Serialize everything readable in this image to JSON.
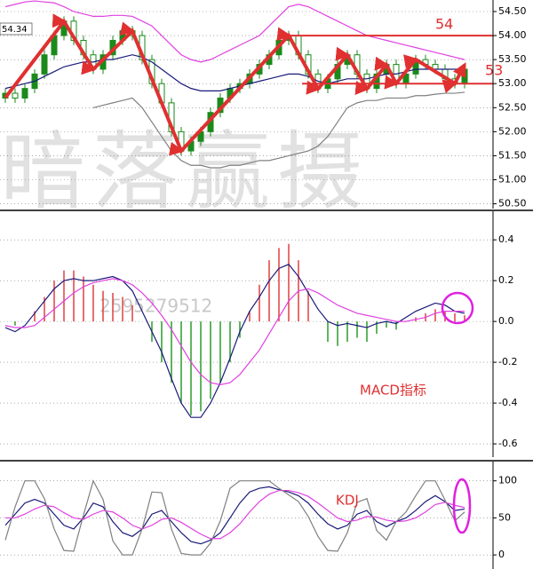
{
  "chart_data": [
    {
      "type": "candlestick",
      "ylim": [
        50.4,
        54.74
      ],
      "yticks": [
        {
          "value": 54.5,
          "label": "54.50"
        },
        {
          "value": 54,
          "label": "54.00"
        },
        {
          "value": 53.5,
          "label": "53.50"
        },
        {
          "value": 53,
          "label": "53.00"
        },
        {
          "value": 52.5,
          "label": "52.50"
        },
        {
          "value": 52,
          "label": "52.00"
        },
        {
          "value": 51.5,
          "label": "51.50"
        },
        {
          "value": 51,
          "label": "51.00"
        },
        {
          "value": 50.5,
          "label": "50.50"
        }
      ],
      "grid": true,
      "up_color": "#1a8a1a",
      "down_color": "#ffffff",
      "watermark": "暗落赢摄",
      "high_label": "54.34",
      "annotations": [
        {
          "text": "54",
          "value": 54,
          "color": "#e03030"
        },
        {
          "text": "53",
          "value": 53,
          "color": "#e03030"
        }
      ],
      "candles": [
        [
          52.7,
          52.9,
          52.6,
          52.8
        ],
        [
          52.8,
          52.9,
          52.6,
          52.7
        ],
        [
          52.7,
          53.0,
          52.6,
          52.9
        ],
        [
          52.9,
          53.3,
          52.8,
          53.2
        ],
        [
          53.2,
          53.7,
          53.1,
          53.6
        ],
        [
          53.6,
          54.1,
          53.5,
          54.0
        ],
        [
          54.0,
          54.4,
          53.9,
          54.3
        ],
        [
          54.3,
          54.4,
          53.8,
          53.9
        ],
        [
          53.9,
          54.0,
          53.5,
          53.6
        ],
        [
          53.6,
          53.7,
          53.2,
          53.3
        ],
        [
          53.3,
          53.7,
          53.2,
          53.6
        ],
        [
          53.6,
          54.0,
          53.5,
          53.9
        ],
        [
          53.9,
          54.2,
          53.8,
          54.1
        ],
        [
          54.1,
          54.2,
          53.9,
          54.0
        ],
        [
          54.0,
          54.1,
          53.4,
          53.5
        ],
        [
          53.5,
          53.6,
          52.9,
          53.0
        ],
        [
          53.0,
          53.1,
          52.5,
          52.6
        ],
        [
          52.6,
          52.7,
          51.9,
          52.0
        ],
        [
          52.0,
          52.1,
          51.5,
          51.6
        ],
        [
          51.6,
          51.9,
          51.5,
          51.8
        ],
        [
          51.8,
          52.1,
          51.7,
          52.0
        ],
        [
          52.0,
          52.5,
          51.9,
          52.4
        ],
        [
          52.4,
          52.8,
          52.3,
          52.7
        ],
        [
          52.7,
          53.0,
          52.6,
          52.9
        ],
        [
          52.9,
          53.1,
          52.8,
          53.0
        ],
        [
          53.0,
          53.3,
          52.9,
          53.2
        ],
        [
          53.2,
          53.5,
          53.1,
          53.4
        ],
        [
          53.4,
          53.7,
          53.3,
          53.6
        ],
        [
          53.6,
          54.0,
          53.5,
          53.9
        ],
        [
          53.9,
          54.1,
          53.8,
          54.0
        ],
        [
          54.0,
          54.1,
          53.5,
          53.6
        ],
        [
          53.6,
          53.7,
          53.1,
          53.2
        ],
        [
          53.2,
          53.3,
          52.8,
          52.9
        ],
        [
          52.9,
          53.2,
          52.8,
          53.1
        ],
        [
          53.1,
          53.5,
          53.0,
          53.4
        ],
        [
          53.4,
          53.7,
          53.3,
          53.6
        ],
        [
          53.6,
          53.7,
          53.1,
          53.2
        ],
        [
          53.2,
          53.3,
          52.8,
          52.9
        ],
        [
          52.9,
          53.3,
          52.8,
          53.2
        ],
        [
          53.2,
          53.5,
          53.1,
          53.4
        ],
        [
          53.4,
          53.5,
          52.9,
          53.0
        ],
        [
          53.0,
          53.3,
          52.9,
          53.2
        ],
        [
          53.2,
          53.6,
          53.1,
          53.5
        ],
        [
          53.5,
          53.6,
          53.3,
          53.4
        ],
        [
          53.4,
          53.5,
          53.2,
          53.3
        ],
        [
          53.3,
          53.4,
          53.0,
          53.1
        ],
        [
          53.1,
          53.2,
          52.9,
          53.0
        ],
        [
          53.0,
          53.4,
          52.9,
          53.3
        ]
      ],
      "series": [
        {
          "color": "#e040e0",
          "values": [
            54.6,
            54.65,
            54.7,
            54.72,
            54.7,
            54.68,
            54.6,
            54.5,
            54.45,
            54.4,
            54.4,
            54.42,
            54.42,
            54.4,
            54.3,
            54.2,
            54.0,
            53.8,
            53.6,
            53.5,
            53.45,
            53.5,
            53.6,
            53.7,
            53.8,
            53.9,
            54.0,
            54.2,
            54.4,
            54.6,
            54.65,
            54.6,
            54.5,
            54.4,
            54.3,
            54.2,
            54.1,
            54.0,
            53.95,
            53.9,
            53.85,
            53.8,
            53.75,
            53.7,
            53.65,
            53.6,
            53.55,
            53.5
          ]
        },
        {
          "color": "#1a1a7a",
          "values": [
            52.9,
            52.95,
            53.0,
            53.05,
            53.15,
            53.25,
            53.35,
            53.4,
            53.45,
            53.45,
            53.5,
            53.5,
            53.55,
            53.6,
            53.55,
            53.45,
            53.3,
            53.15,
            53.0,
            52.9,
            52.85,
            52.85,
            52.85,
            52.9,
            52.95,
            53.0,
            53.05,
            53.1,
            53.15,
            53.2,
            53.2,
            53.15,
            53.05,
            53.0,
            53.05,
            53.1,
            53.1,
            53.1,
            53.15,
            53.2,
            53.2,
            53.25,
            53.3,
            53.3,
            53.3,
            53.3,
            53.3,
            53.3
          ]
        },
        {
          "color": "#808080",
          "values": [
            null,
            null,
            null,
            null,
            null,
            null,
            null,
            null,
            null,
            52.5,
            52.55,
            52.6,
            52.65,
            52.7,
            52.5,
            52.2,
            51.9,
            51.6,
            51.4,
            51.3,
            51.3,
            51.25,
            51.25,
            51.3,
            51.3,
            51.35,
            51.4,
            51.4,
            51.45,
            51.5,
            51.55,
            51.6,
            51.7,
            51.9,
            52.2,
            52.5,
            52.6,
            52.65,
            52.65,
            52.7,
            52.7,
            52.7,
            52.75,
            52.75,
            52.78,
            52.8,
            52.8,
            52.82
          ]
        }
      ]
    },
    {
      "type": "macd",
      "ylim": [
        -0.665,
        0.54
      ],
      "yticks": [
        0.4,
        0.2,
        {
          "value": 0,
          "label": "0.0"
        },
        -0.2,
        -0.4,
        -0.6
      ],
      "grid": true,
      "title": "MACD指标",
      "title_color": "#e03030",
      "watermark": "2595279512",
      "histogram": {
        "up_color": "#e04040",
        "down_color": "#2a9a2a",
        "values": [
          0.0,
          -0.02,
          0.0,
          0.05,
          0.12,
          0.2,
          0.25,
          0.25,
          0.22,
          0.18,
          0.15,
          0.14,
          0.12,
          0.08,
          0.0,
          -0.1,
          -0.2,
          -0.3,
          -0.4,
          -0.46,
          -0.44,
          -0.38,
          -0.3,
          -0.2,
          -0.08,
          0.05,
          0.18,
          0.3,
          0.36,
          0.38,
          0.3,
          0.15,
          0.0,
          -0.1,
          -0.12,
          -0.1,
          -0.08,
          -0.1,
          -0.06,
          -0.03,
          -0.04,
          0.0,
          0.02,
          0.04,
          0.06,
          0.05,
          0.04,
          0.03
        ]
      },
      "series": [
        {
          "color": "#1a1a7a",
          "values": [
            -0.03,
            -0.05,
            -0.02,
            0.04,
            0.1,
            0.16,
            0.2,
            0.21,
            0.2,
            0.2,
            0.21,
            0.22,
            0.2,
            0.15,
            0.05,
            -0.05,
            -0.15,
            -0.28,
            -0.4,
            -0.47,
            -0.47,
            -0.4,
            -0.3,
            -0.18,
            -0.05,
            0.05,
            0.12,
            0.2,
            0.26,
            0.28,
            0.22,
            0.14,
            0.06,
            0.0,
            -0.02,
            -0.01,
            -0.02,
            -0.03,
            -0.01,
            0.0,
            -0.01,
            0.02,
            0.05,
            0.07,
            0.09,
            0.08,
            0.05,
            0.04
          ]
        },
        {
          "color": "#e040e0",
          "values": [
            -0.02,
            -0.03,
            -0.03,
            -0.02,
            0.02,
            0.06,
            0.1,
            0.14,
            0.17,
            0.19,
            0.2,
            0.21,
            0.2,
            0.18,
            0.14,
            0.09,
            0.03,
            -0.04,
            -0.12,
            -0.2,
            -0.26,
            -0.3,
            -0.31,
            -0.3,
            -0.26,
            -0.2,
            -0.14,
            -0.06,
            0.02,
            0.1,
            0.15,
            0.16,
            0.14,
            0.11,
            0.08,
            0.06,
            0.04,
            0.03,
            0.02,
            0.01,
            0.0,
            0.0,
            0.01,
            0.02,
            0.04,
            0.05,
            0.05,
            0.05
          ]
        }
      ]
    },
    {
      "type": "line",
      "ylim": [
        -19,
        126
      ],
      "yticks": [
        100,
        50,
        0
      ],
      "grid": true,
      "title": "KDJ",
      "title_color": "#e03030",
      "series": [
        {
          "color": "#1a1a7a",
          "values": [
            40,
            55,
            70,
            75,
            70,
            55,
            40,
            35,
            50,
            70,
            65,
            45,
            30,
            25,
            35,
            55,
            60,
            45,
            30,
            18,
            15,
            20,
            30,
            50,
            70,
            85,
            90,
            92,
            88,
            85,
            80,
            70,
            55,
            42,
            35,
            40,
            55,
            60,
            45,
            38,
            45,
            50,
            60,
            72,
            80,
            72,
            60,
            62
          ]
        },
        {
          "color": "#e040e0",
          "values": [
            50,
            50,
            55,
            62,
            67,
            65,
            57,
            50,
            48,
            55,
            60,
            58,
            50,
            40,
            35,
            40,
            48,
            50,
            44,
            36,
            28,
            22,
            22,
            30,
            42,
            58,
            72,
            82,
            87,
            87,
            84,
            79,
            70,
            60,
            50,
            45,
            47,
            52,
            51,
            47,
            45,
            46,
            50,
            58,
            68,
            71,
            67,
            64
          ]
        },
        {
          "color": "#808080",
          "values": [
            20,
            65,
            100,
            100,
            76,
            35,
            6,
            5,
            54,
            100,
            75,
            19,
            0,
            0,
            35,
            85,
            84,
            35,
            2,
            0,
            0,
            16,
            46,
            90,
            100,
            100,
            100,
            100,
            90,
            81,
            72,
            52,
            25,
            6,
            5,
            30,
            71,
            76,
            33,
            20,
            45,
            58,
            80,
            100,
            100,
            74,
            46,
            58
          ]
        }
      ]
    }
  ]
}
